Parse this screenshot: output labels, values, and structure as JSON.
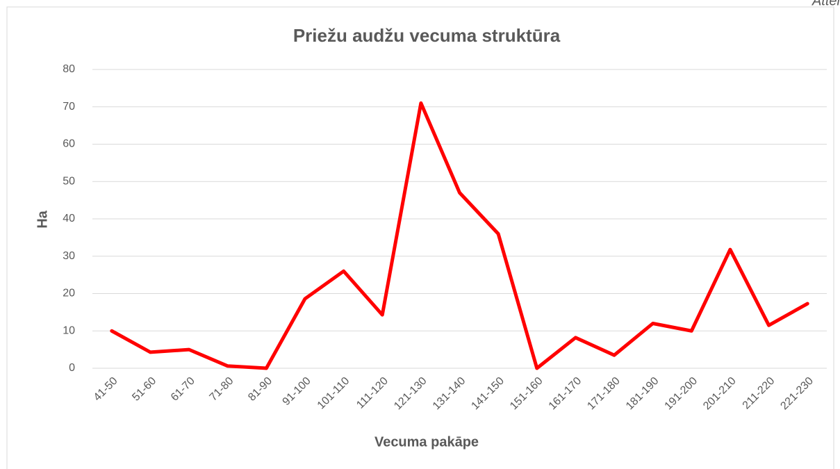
{
  "chart_data": {
    "type": "line",
    "title": "Priežu audžu vecuma struktūra",
    "annotation": "Attēl",
    "x_label": "Vecuma pakāpe",
    "y_label": "Ha",
    "categories": [
      "41-50",
      "51-60",
      "61-70",
      "71-80",
      "81-90",
      "91-100",
      "101-110",
      "111-120",
      "121-130",
      "131-140",
      "141-150",
      "151-160",
      "161-170",
      "171-180",
      "181-190",
      "191-200",
      "201-210",
      "211-220",
      "221-230"
    ],
    "series": [
      {
        "name": "Ha",
        "color": "#ff0000",
        "values": [
          10,
          4.3,
          5,
          0.6,
          0,
          18.6,
          26,
          14.3,
          71,
          47,
          36,
          0,
          8.2,
          3.5,
          12,
          10,
          31.8,
          11.5,
          17.3
        ]
      }
    ],
    "ylim": [
      0,
      80
    ],
    "yticks": [
      0,
      10,
      20,
      30,
      40,
      50,
      60,
      70,
      80
    ],
    "grid": true
  }
}
